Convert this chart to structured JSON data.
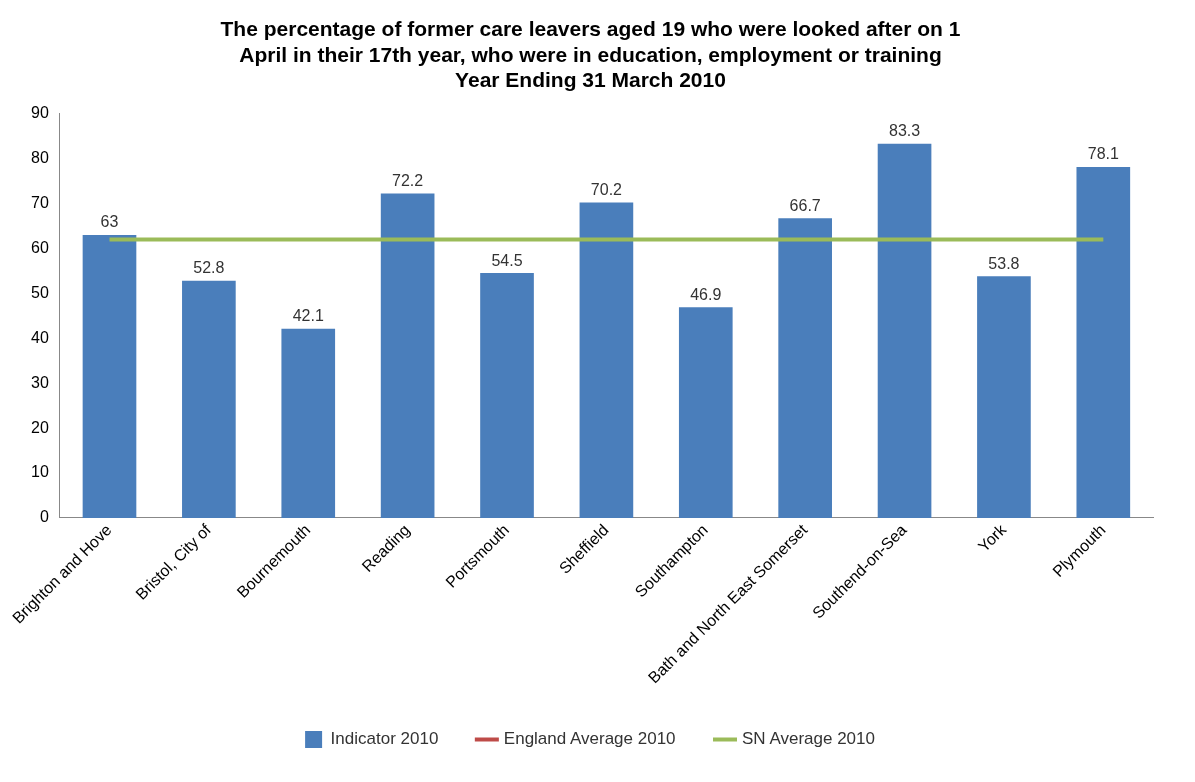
{
  "chart_data": {
    "type": "bar",
    "title": "The percentage of former care leavers aged 19 who were looked after on 1\nApril in their 17th year, who were in education, employment or training\nYear Ending 31 March 2010",
    "categories": [
      "Brighton and Hove",
      "Bristol, City of",
      "Bournemouth",
      "Reading",
      "Portsmouth",
      "Sheffield",
      "Southampton",
      "Bath and North East Somerset",
      "Southend-on-Sea",
      "York",
      "Plymouth"
    ],
    "series": [
      {
        "name": "Indicator 2010",
        "color": "#4a7ebb",
        "values": [
          63,
          52.8,
          42.1,
          72.2,
          54.5,
          70.2,
          46.9,
          66.7,
          83.3,
          53.8,
          78.1
        ],
        "value_labels": [
          "63",
          "52.8",
          "42.1",
          "72.2",
          "54.5",
          "70.2",
          "46.9",
          "66.7",
          "83.3",
          "53.8",
          "78.1"
        ]
      },
      {
        "name": "England Average 2010",
        "type": "line",
        "color": "#be4b48",
        "values": [
          null,
          null,
          null,
          null,
          null,
          null,
          null,
          null,
          null,
          null,
          null
        ]
      },
      {
        "name": "SN Average 2010",
        "type": "line",
        "color": "#9bbb59",
        "values": [
          62,
          62,
          62,
          62,
          62,
          62,
          62,
          62,
          62,
          62,
          62
        ]
      }
    ],
    "ylim": [
      0,
      90
    ],
    "yticks": [
      0,
      10,
      20,
      30,
      40,
      50,
      60,
      70,
      80,
      90
    ],
    "grid": false,
    "legend": "bottom",
    "marker": "none"
  }
}
